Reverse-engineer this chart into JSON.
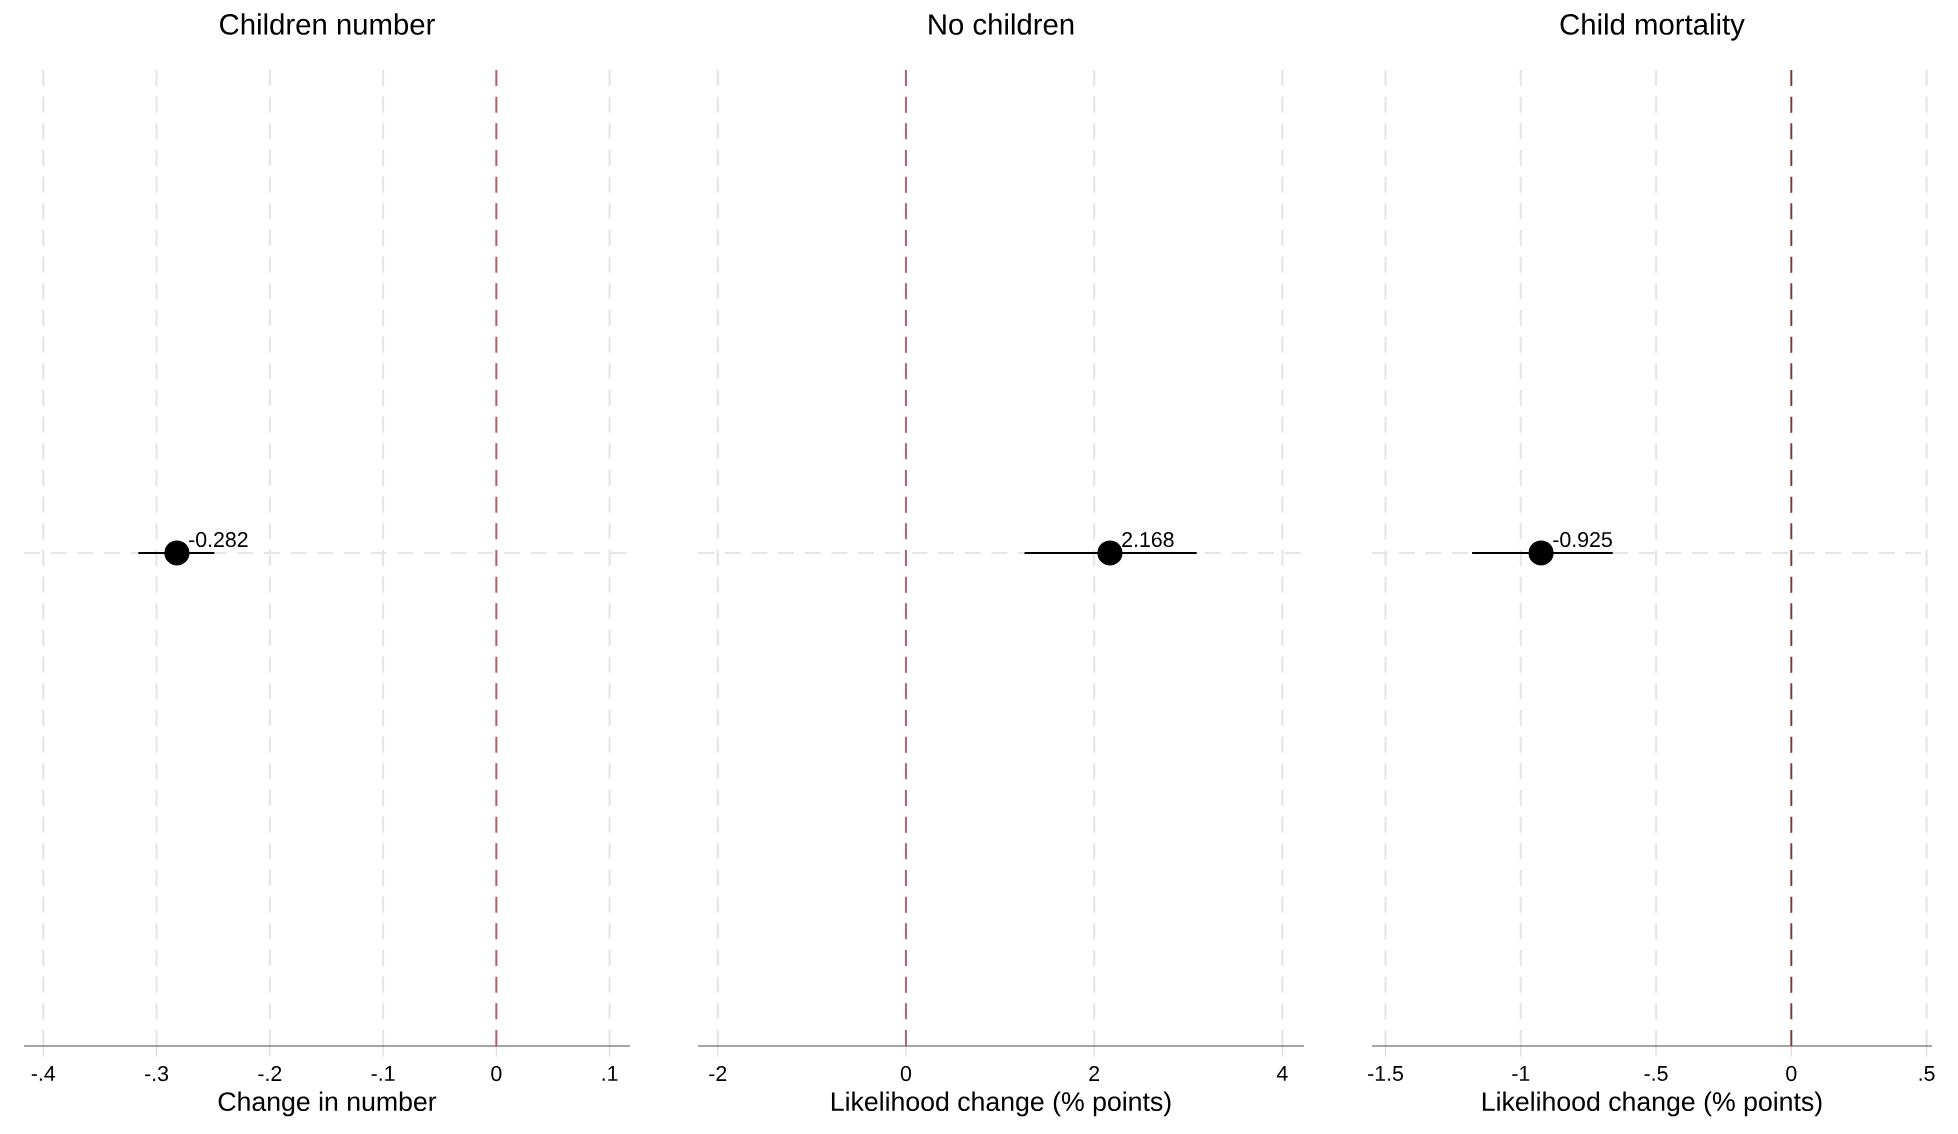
{
  "chart_data": [
    {
      "type": "scatter",
      "title": "Children number",
      "xlabel": "Change in number",
      "orientation": "horizontal",
      "categories": [
        null
      ],
      "values": [
        -0.282
      ],
      "errors": [
        [
          -0.316,
          -0.249
        ]
      ],
      "color": "#000000",
      "data_labels": true,
      "grid": true,
      "tick_labels": "x",
      "xlim": [
        -0.417,
        0.118
      ],
      "xticks": [
        {
          "value": -0.4,
          "label": "-.4"
        },
        {
          "value": -0.3,
          "label": "-.3"
        },
        {
          "value": -0.2,
          "label": "-.2"
        },
        {
          "value": -0.1,
          "label": "-.1"
        },
        0,
        {
          "value": 0.1,
          "label": ".1"
        }
      ],
      "ref_lines": [
        {
          "axis": "x",
          "value": 0,
          "color": "#b85a6a",
          "line_style": "dashed"
        }
      ]
    },
    {
      "type": "scatter",
      "title": "No children",
      "xlabel": "Likelihood change (% points)",
      "orientation": "horizontal",
      "categories": [
        null
      ],
      "values": [
        2.168
      ],
      "errors": [
        [
          1.26,
          3.09
        ]
      ],
      "color": "#000000",
      "data_labels": true,
      "grid": true,
      "tick_labels": "x",
      "xlim": [
        -2.21,
        4.23
      ],
      "xticks": [
        -2,
        0,
        2,
        4
      ],
      "ref_lines": [
        {
          "axis": "x",
          "value": 0,
          "color": "#b85a6a",
          "line_style": "dashed"
        }
      ]
    },
    {
      "type": "scatter",
      "title": "Child mortality",
      "xlabel": "Likelihood change (% points)",
      "orientation": "horizontal",
      "categories": [
        null
      ],
      "values": [
        -0.925
      ],
      "errors": [
        [
          -1.18,
          -0.66
        ]
      ],
      "color": "#000000",
      "data_labels": true,
      "grid": true,
      "tick_labels": "x",
      "xlim": [
        -1.55,
        0.52
      ],
      "xticks": [
        {
          "value": -1.5,
          "label": "-1.5"
        },
        -1,
        {
          "value": -0.5,
          "label": "-.5"
        },
        0,
        {
          "value": 0.5,
          "label": ".5"
        }
      ],
      "ref_lines": [
        {
          "axis": "x",
          "value": 0,
          "color": "#7a3a3a",
          "line_style": "dashed"
        }
      ]
    }
  ]
}
